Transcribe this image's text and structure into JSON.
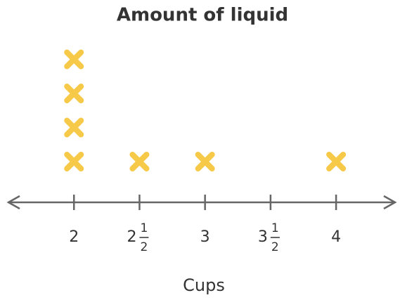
{
  "chart_data": {
    "type": "dot",
    "title": "Amount of liquid",
    "xlabel": "Cups",
    "x": [
      2,
      2.5,
      3,
      3.5,
      4
    ],
    "values": [
      4,
      1,
      1,
      0,
      1
    ],
    "color": "#f7c948",
    "xlim": [
      1.5,
      4.45
    ],
    "xticks": [
      2,
      {
        "value": 2.5,
        "label": "2 1/2"
      },
      3,
      {
        "value": 3.5,
        "label": "3 1/2"
      },
      4
    ]
  }
}
